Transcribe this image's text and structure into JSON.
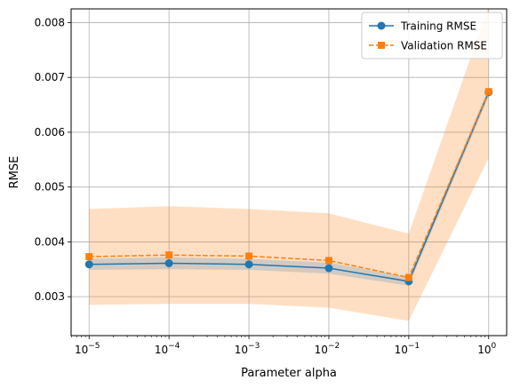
{
  "chart_data": {
    "type": "line",
    "xscale": "log",
    "x": [
      1e-05,
      0.0001,
      0.001,
      0.01,
      0.1,
      1
    ],
    "xticks": [
      {
        "base": "10",
        "exp": "−5"
      },
      {
        "base": "10",
        "exp": "−4"
      },
      {
        "base": "10",
        "exp": "−3"
      },
      {
        "base": "10",
        "exp": "−2"
      },
      {
        "base": "10",
        "exp": "−1"
      },
      {
        "base": "10",
        "exp": "0"
      }
    ],
    "yticks": [
      0.003,
      0.004,
      0.005,
      0.006,
      0.007,
      0.008
    ],
    "ytick_labels": [
      "0.003",
      "0.004",
      "0.005",
      "0.006",
      "0.007",
      "0.008"
    ],
    "ylim": [
      0.00229,
      0.00825
    ],
    "xlabel": "Parameter alpha",
    "ylabel": "RMSE",
    "grid": true,
    "legend": "top-right",
    "series": [
      {
        "name": "Training RMSE",
        "color": "#1f77b4",
        "marker": "circle",
        "linestyle": "solid",
        "values": [
          0.00359,
          0.00361,
          0.00359,
          0.00352,
          0.00328,
          0.00673
        ],
        "band_lower": [
          0.00349,
          0.0035,
          0.00349,
          0.00342,
          0.0032,
          0.00665
        ],
        "band_upper": [
          0.00369,
          0.00372,
          0.00369,
          0.00362,
          0.00336,
          0.00681
        ]
      },
      {
        "name": "Validation RMSE",
        "color": "#ff7f0e",
        "marker": "square",
        "linestyle": "dashed",
        "values": [
          0.00373,
          0.00376,
          0.00374,
          0.00366,
          0.00335,
          0.00674
        ],
        "band_lower": [
          0.00285,
          0.00287,
          0.00287,
          0.0028,
          0.00256,
          0.00553
        ],
        "band_upper": [
          0.0046,
          0.00465,
          0.0046,
          0.00452,
          0.00415,
          0.0083
        ]
      }
    ]
  }
}
